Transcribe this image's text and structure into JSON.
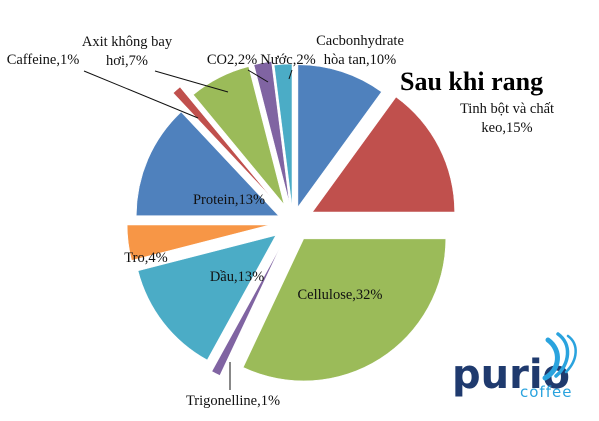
{
  "chart_data": {
    "type": "pie",
    "title": "Sau khi rang",
    "exploded": true,
    "slices": [
      {
        "label": "Cacbonhydrate\nhòa tan,10%",
        "value": 10,
        "color": "#4f81bd"
      },
      {
        "label": "Tinh bột và chất\nkeo,15%",
        "value": 15,
        "color": "#c0504d"
      },
      {
        "label": "Cellulose,32%",
        "value": 32,
        "color": "#9bbb59"
      },
      {
        "label": "Trigonelline,1%",
        "value": 1,
        "color": "#8064a2"
      },
      {
        "label": "Dầu,13%",
        "value": 13,
        "color": "#4bacc6"
      },
      {
        "label": "Tro,4%",
        "value": 4,
        "color": "#f79646"
      },
      {
        "label": "Protein,13%",
        "value": 13,
        "color": "#4f81bd"
      },
      {
        "label": "Caffeine,1%",
        "value": 1,
        "color": "#c0504d"
      },
      {
        "label": "Axit không bay\nhơi,7%",
        "value": 7,
        "color": "#9bbb59"
      },
      {
        "label": "CO2,2%",
        "value": 2,
        "color": "#8064a2"
      },
      {
        "label": "Nước,2%",
        "value": 2,
        "color": "#4bacc6"
      }
    ]
  },
  "logo": {
    "main": "purio",
    "sub": "coffee"
  }
}
